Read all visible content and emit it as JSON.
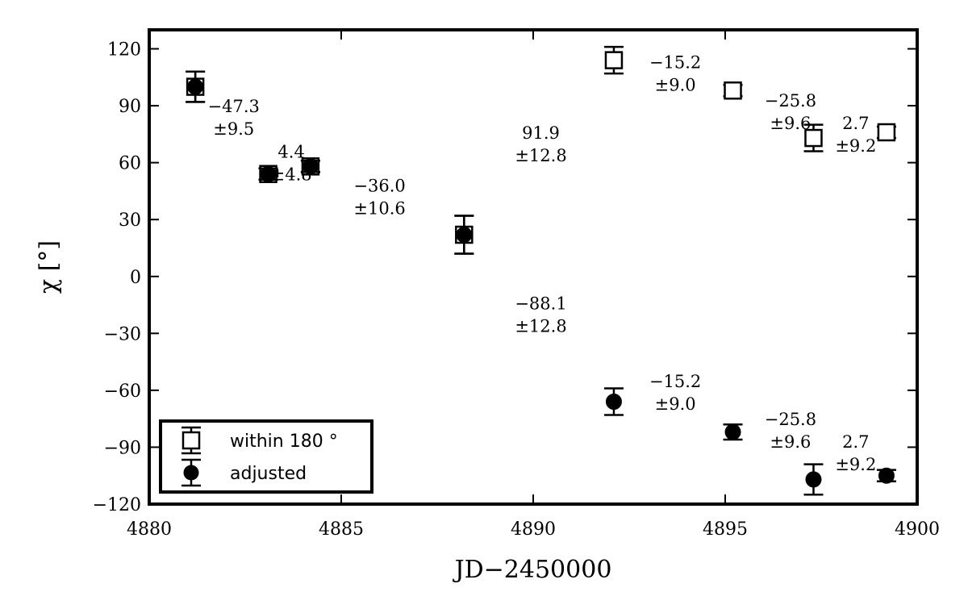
{
  "chart_data": {
    "type": "scatter",
    "title": "",
    "xlabel": "JD−2450000",
    "ylabel": "χ [°]",
    "xlim": [
      4880,
      4900
    ],
    "ylim": [
      -120,
      130
    ],
    "x_ticks": [
      4880,
      4885,
      4890,
      4895,
      4900
    ],
    "y_ticks": [
      120,
      90,
      60,
      30,
      0,
      -30,
      -60,
      -90,
      -120
    ],
    "grid": false,
    "legend_position": "bottom-left",
    "series": [
      {
        "name": "within 180 °",
        "marker": "open-square",
        "points": [
          {
            "x": 4881.2,
            "y": 100,
            "err": 8
          },
          {
            "x": 4883.1,
            "y": 54,
            "err": 3
          },
          {
            "x": 4884.2,
            "y": 58,
            "err": 3
          },
          {
            "x": 4888.2,
            "y": 22,
            "err": 10
          },
          {
            "x": 4892.1,
            "y": 114,
            "err": 7
          },
          {
            "x": 4895.2,
            "y": 98,
            "err": 3
          },
          {
            "x": 4897.3,
            "y": 73,
            "err": 7
          },
          {
            "x": 4899.2,
            "y": 76,
            "err": 3
          }
        ]
      },
      {
        "name": "adjusted",
        "marker": "filled-circle",
        "points": [
          {
            "x": 4881.2,
            "y": 100,
            "err": 8
          },
          {
            "x": 4883.1,
            "y": 54,
            "err": 3
          },
          {
            "x": 4884.2,
            "y": 58,
            "err": 3
          },
          {
            "x": 4888.2,
            "y": 22,
            "err": 10
          },
          {
            "x": 4892.1,
            "y": -66,
            "err": 7
          },
          {
            "x": 4895.2,
            "y": -82,
            "err": 4
          },
          {
            "x": 4897.3,
            "y": -107,
            "err": 8
          },
          {
            "x": 4899.2,
            "y": -105,
            "err": 3
          }
        ]
      }
    ],
    "annotations": [
      {
        "line1": "−47.3",
        "line2": "±9.5",
        "x": 4882.2,
        "y": 85
      },
      {
        "line1": "4.4",
        "line2": "±4.8",
        "x": 4883.7,
        "y": 61
      },
      {
        "line1": "−36.0",
        "line2": "±10.6",
        "x": 4886.0,
        "y": 43
      },
      {
        "line1": "91.9",
        "line2": "±12.8",
        "x": 4890.2,
        "y": 71
      },
      {
        "line1": "−88.1",
        "line2": "±12.8",
        "x": 4890.2,
        "y": -19
      },
      {
        "line1": "−15.2",
        "line2": "±9.0",
        "x": 4893.7,
        "y": 108
      },
      {
        "line1": "−25.8",
        "line2": "±9.6",
        "x": 4896.7,
        "y": 88
      },
      {
        "line1": "2.7",
        "line2": "±9.2",
        "x": 4898.4,
        "y": 76
      },
      {
        "line1": "−15.2",
        "line2": "±9.0",
        "x": 4893.7,
        "y": -60
      },
      {
        "line1": "−25.8",
        "line2": "±9.6",
        "x": 4896.7,
        "y": -80
      },
      {
        "line1": "2.7",
        "line2": "±9.2",
        "x": 4898.4,
        "y": -92
      }
    ]
  }
}
